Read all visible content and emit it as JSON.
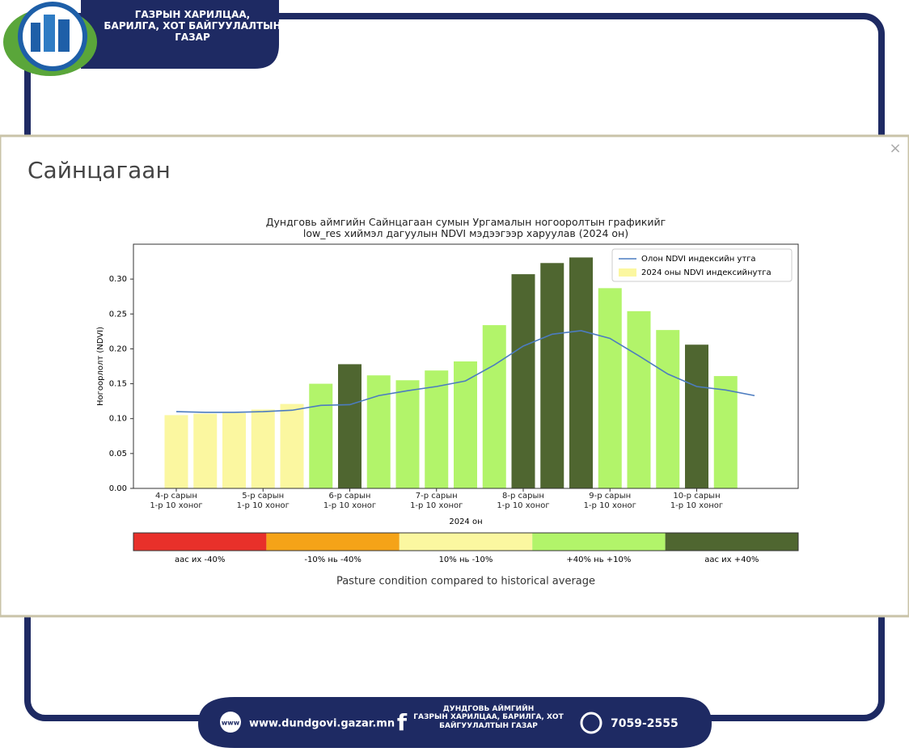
{
  "header": {
    "org": "ГАЗРЫН ХАРИЛЦАА,\nБАРИЛГА, ХОТ БАЙГУУЛАЛТЫН\nГАЗАР"
  },
  "modal": {
    "title": "Сайнцагаан",
    "close": "×"
  },
  "chart_data": {
    "type": "bar",
    "title": "Дундговь аймгийн Сайнцагаан сумын Ургамалын ногоорoлтын графикийг\nlow_res хиймэл дагуулын NDVI мэдээгээр харуулав (2024 он)",
    "xlabel": "2024 он",
    "ylabel": "Ногоорлолт (NDVI)",
    "categories": [
      "4-р сарын\n1-р 10 хоног",
      null,
      null,
      "5-р сарын\n1-р 10 хоног",
      null,
      null,
      "6-р сарын\n1-р 10 хоног",
      null,
      null,
      "7-р сарын\n1-р 10 хоног",
      null,
      null,
      "8-р сарын\n1-р 10 хоног",
      null,
      null,
      "9-р сарын\n1-р 10 хоног",
      null,
      null,
      "10-р сарын\n1-р 10 хоног",
      null,
      null
    ],
    "series": [
      {
        "name": "Олон NDVI индексийн утга",
        "type": "line",
        "color": "#4c7cc0",
        "values": [
          0.11,
          0.109,
          0.109,
          0.11,
          0.112,
          0.119,
          0.12,
          0.133,
          0.14,
          0.146,
          0.154,
          0.177,
          0.204,
          0.221,
          0.226,
          0.215,
          0.19,
          0.164,
          0.146,
          0.141,
          0.133
        ]
      },
      {
        "name": "2024 оны NDVI индексийнутга",
        "type": "bar",
        "color": "#fbf7a0",
        "colors": [
          "#fbf7a0",
          "#fbf7a0",
          "#fbf7a0",
          "#fbf7a0",
          "#fbf7a0",
          "#b2f46a",
          "#4f6630",
          "#b2f46a",
          "#b2f46a",
          "#b2f46a",
          "#b2f46a",
          "#b2f46a",
          "#4f6630",
          "#4f6630",
          "#4f6630",
          "#b2f46a",
          "#b2f46a",
          "#b2f46a",
          "#4f6630",
          "#b2f46a",
          null
        ],
        "values": [
          0.105,
          0.107,
          0.108,
          0.113,
          0.121,
          0.15,
          0.178,
          0.162,
          0.155,
          0.169,
          0.182,
          0.234,
          0.307,
          0.323,
          0.331,
          0.287,
          0.254,
          0.227,
          0.206,
          0.161,
          null
        ]
      }
    ],
    "ylim": [
      0,
      0.35
    ],
    "yticks": [
      {
        "value": 0,
        "label": "0.00"
      },
      {
        "value": 0.05,
        "label": "0.05"
      },
      {
        "value": 0.1,
        "label": "0.10"
      },
      {
        "value": 0.15,
        "label": "0.15"
      },
      {
        "value": 0.2,
        "label": "0.20"
      },
      {
        "value": 0.25,
        "label": "0.25"
      },
      {
        "value": 0.3,
        "label": "0.30"
      }
    ],
    "legend": "upper right",
    "colorbar": {
      "label": "Pasture condition compared to historical average",
      "items": [
        {
          "color": "#e8302a",
          "label": "аас их -40%"
        },
        {
          "color": "#f5a318",
          "label": "-10% нь -40%"
        },
        {
          "color": "#fbf7a0",
          "label": "10% нь -10%"
        },
        {
          "color": "#b2f46a",
          "label": "+40% нь +10%"
        },
        {
          "color": "#4f6630",
          "label": "аас их +40%"
        }
      ]
    }
  },
  "footer": {
    "website": "www.dundgovi.gazar.mn",
    "facebook": "ДУНДГОВЬ АЙМГИЙН\nГАЗРЫН ХАРИЛЦАА, БАРИЛГА, ХОТ\nБАЙГУУЛАЛТЫН ГАЗАР",
    "phone": "7059-2555"
  }
}
